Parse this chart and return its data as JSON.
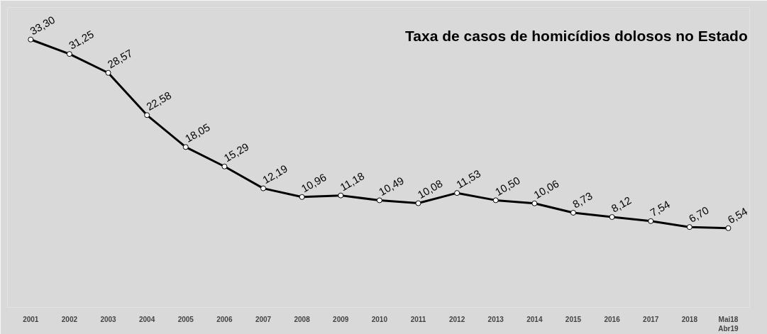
{
  "chart_data": {
    "type": "line",
    "title": "Taxa de casos de homicídios dolosos no Estado",
    "categories": [
      "2001",
      "2002",
      "2003",
      "2004",
      "2005",
      "2006",
      "2007",
      "2008",
      "2009",
      "2010",
      "2011",
      "2012",
      "2013",
      "2014",
      "2015",
      "2016",
      "2017",
      "2018",
      "Mai18\nAbr19"
    ],
    "series": [
      {
        "color": "#000000",
        "values": [
          33.3,
          31.25,
          28.57,
          22.58,
          18.05,
          15.29,
          12.19,
          10.96,
          11.18,
          10.49,
          10.08,
          11.53,
          10.5,
          10.06,
          8.73,
          8.12,
          7.54,
          6.7,
          6.54
        ],
        "value_labels": [
          "33,30",
          "31,25",
          "28,57",
          "22,58",
          "18,05",
          "15,29",
          "12,19",
          "10,96",
          "11,18",
          "10,49",
          "10,08",
          "11,53",
          "10,50",
          "10,06",
          "8,73",
          "8,12",
          "7,54",
          "6,70",
          "6,54"
        ]
      }
    ],
    "marker": "circle",
    "line_style": "solid",
    "grid": false,
    "tick_labels": "x"
  }
}
